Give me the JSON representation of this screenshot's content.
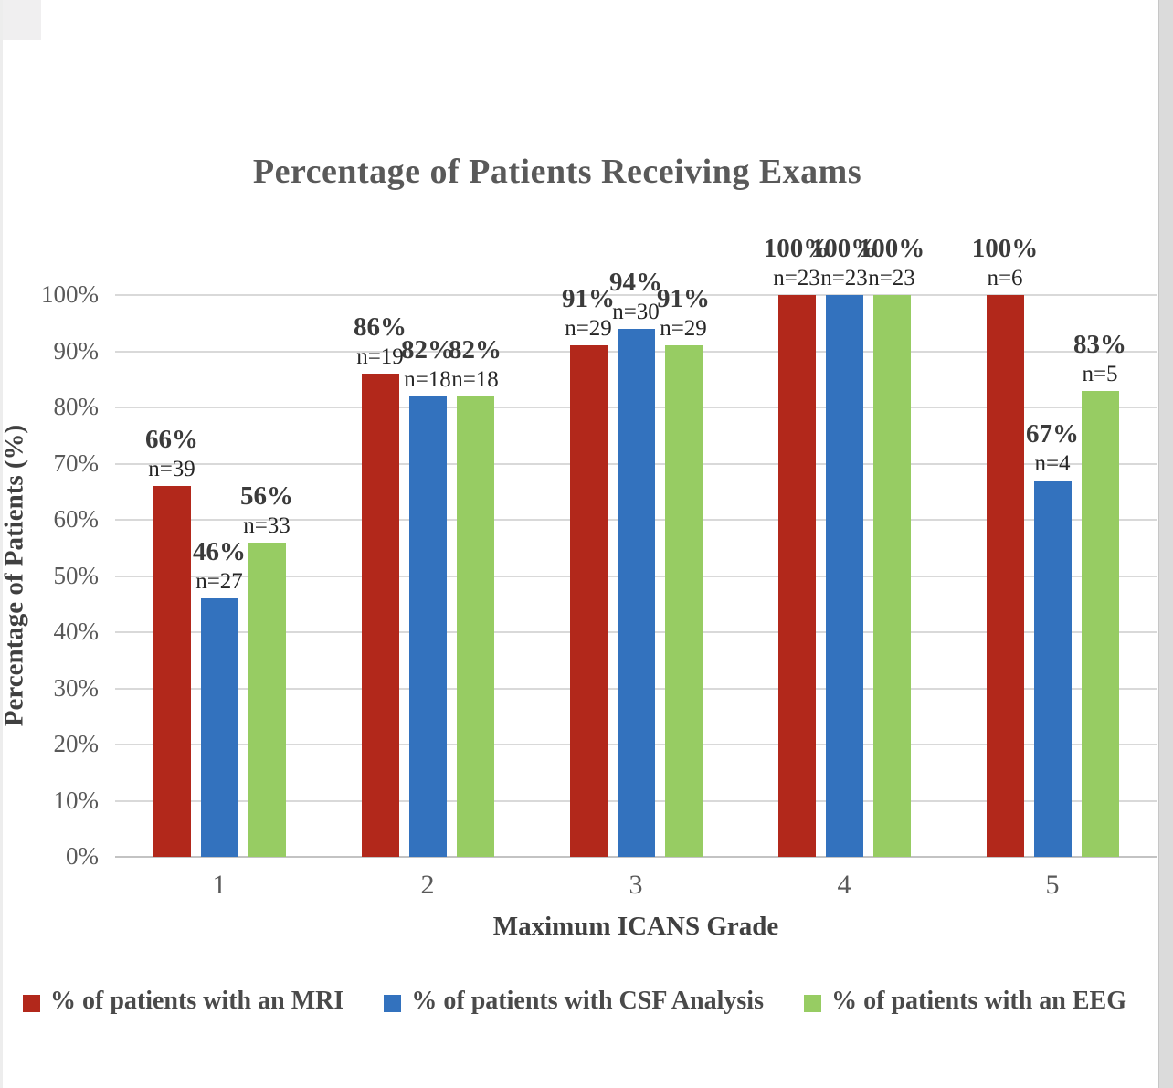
{
  "title": "Percentage of Patients Receiving Exams",
  "chart_data": {
    "type": "bar",
    "title": "Percentage of Patients Receiving Exams",
    "xlabel": "Maximum ICANS Grade",
    "ylabel": "Percentage of Patients (%)",
    "categories": [
      "1",
      "2",
      "3",
      "4",
      "5"
    ],
    "ylim": [
      0,
      100
    ],
    "yticks": [
      "0%",
      "10%",
      "20%",
      "30%",
      "40%",
      "50%",
      "60%",
      "70%",
      "80%",
      "90%",
      "100%"
    ],
    "grid": true,
    "legend_position": "bottom",
    "series": [
      {
        "name": "% of patients with an MRI",
        "color": "#b2281b",
        "values": [
          66,
          86,
          91,
          100,
          100
        ],
        "pct_labels": [
          "66%",
          "86%",
          "91%",
          "100%",
          "100%"
        ],
        "n_labels": [
          "n=39",
          "n=19",
          "n=29",
          "n=23",
          "n=6"
        ]
      },
      {
        "name": "% of patients with CSF Analysis",
        "color": "#3372be",
        "values": [
          46,
          82,
          94,
          100,
          67
        ],
        "pct_labels": [
          "46%",
          "82%",
          "94%",
          "100%",
          "67%"
        ],
        "n_labels": [
          "n=27",
          "n=18",
          "n=30",
          "n=23",
          "n=4"
        ]
      },
      {
        "name": "% of patients with an EEG",
        "color": "#97cc63",
        "values": [
          56,
          82,
          91,
          100,
          83
        ],
        "pct_labels": [
          "56%",
          "82%",
          "91%",
          "100%",
          "83%"
        ],
        "n_labels": [
          "n=33",
          "n=18",
          "n=29",
          "n=23",
          "n=5"
        ]
      }
    ]
  }
}
